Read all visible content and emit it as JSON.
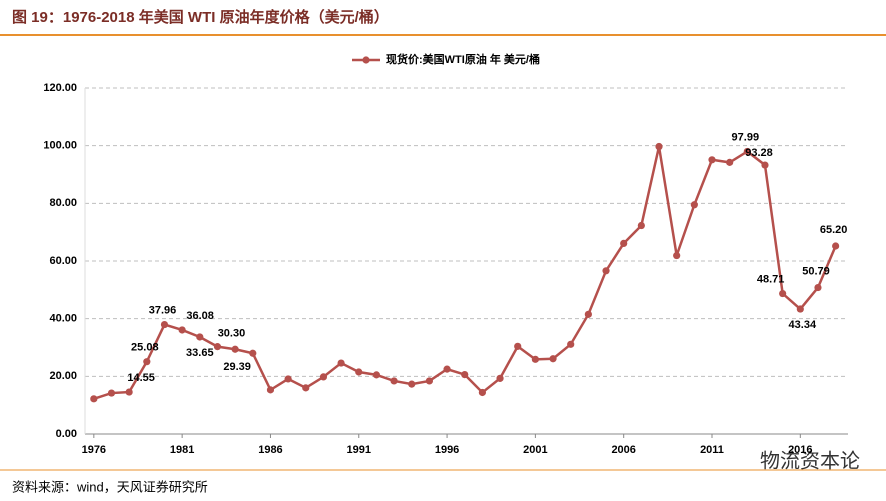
{
  "header": {
    "title": "图 19：1976-2018 年美国 WTI 原油年度价格（美元/桶）"
  },
  "chart_data": {
    "type": "line",
    "x": [
      1976,
      1977,
      1978,
      1979,
      1980,
      1981,
      1982,
      1983,
      1984,
      1985,
      1986,
      1987,
      1988,
      1989,
      1990,
      1991,
      1992,
      1993,
      1994,
      1995,
      1996,
      1997,
      1998,
      1999,
      2000,
      2001,
      2002,
      2003,
      2004,
      2005,
      2006,
      2007,
      2008,
      2009,
      2010,
      2011,
      2012,
      2013,
      2014,
      2015,
      2016,
      2017,
      2018
    ],
    "series": [
      {
        "name": "现货价:美国WTI原油 年 美元/桶",
        "color": "#b5504c",
        "values": [
          12.2,
          14.2,
          14.55,
          25.08,
          37.96,
          36.08,
          33.65,
          30.3,
          29.39,
          28.0,
          15.3,
          19.1,
          16.0,
          19.8,
          24.6,
          21.5,
          20.5,
          18.4,
          17.3,
          18.4,
          22.5,
          20.6,
          14.4,
          19.3,
          30.4,
          25.9,
          26.1,
          31.1,
          41.5,
          56.6,
          66.1,
          72.3,
          99.7,
          61.9,
          79.5,
          95.1,
          94.2,
          97.99,
          93.28,
          48.71,
          43.34,
          50.79,
          65.2
        ],
        "value_labels": [
          null,
          null,
          "14.55",
          "25.08",
          "37.96",
          "36.08",
          "33.65",
          "30.30",
          "29.39",
          null,
          null,
          null,
          null,
          null,
          null,
          null,
          null,
          null,
          null,
          null,
          null,
          null,
          null,
          null,
          null,
          null,
          null,
          null,
          null,
          null,
          null,
          null,
          null,
          null,
          null,
          null,
          null,
          "97.99",
          "93.28",
          "48.71",
          "43.34",
          "50.79",
          "65.20"
        ]
      }
    ],
    "xlim": [
      1975.5,
      2018.7
    ],
    "xticks": [
      1976,
      1981,
      1986,
      1991,
      1996,
      2001,
      2006,
      2011,
      2016
    ],
    "ylim": [
      0,
      120
    ],
    "yticks": [
      {
        "value": 0,
        "label": "0.00"
      },
      {
        "value": 20,
        "label": "20.00"
      },
      {
        "value": 40,
        "label": "40.00"
      },
      {
        "value": 60,
        "label": "60.00"
      },
      {
        "value": 80,
        "label": "80.00"
      },
      {
        "value": 100,
        "label": "100.00"
      },
      {
        "value": 120,
        "label": "120.00"
      }
    ],
    "grid": true
  },
  "footer": {
    "source": "资料来源：wind，天风证券研究所",
    "watermark": "物流资本论"
  }
}
